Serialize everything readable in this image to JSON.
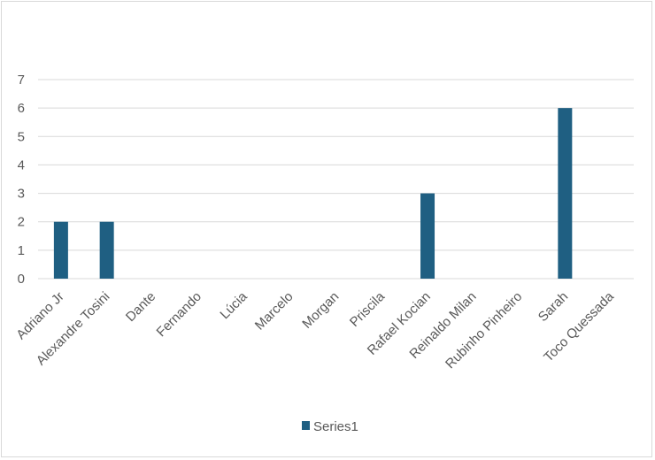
{
  "chart_data": {
    "type": "bar",
    "categories": [
      "Adriano Jr",
      "Alexandre Tosini",
      "Dante",
      "Fernando",
      "Lúcia",
      "Marcelo",
      "Morgan",
      "Priscila",
      "Rafael Kocian",
      "Reinaldo Milan",
      "Rubinho Pinheiro",
      "Sarah",
      "Toco Quessada"
    ],
    "series": [
      {
        "name": "Series1",
        "values": [
          2,
          2,
          0,
          0,
          0,
          0,
          0,
          0,
          3,
          0,
          0,
          6,
          0
        ],
        "color": "#1f5f82"
      }
    ],
    "title": "",
    "xlabel": "",
    "ylabel": "",
    "ylim": [
      0,
      7
    ],
    "yticks": [
      "0",
      "1",
      "2",
      "3",
      "4",
      "5",
      "6",
      "7"
    ],
    "grid": true,
    "legend_position": "bottom",
    "gridline_color": "#d9d9d9",
    "label_color": "#595959"
  }
}
